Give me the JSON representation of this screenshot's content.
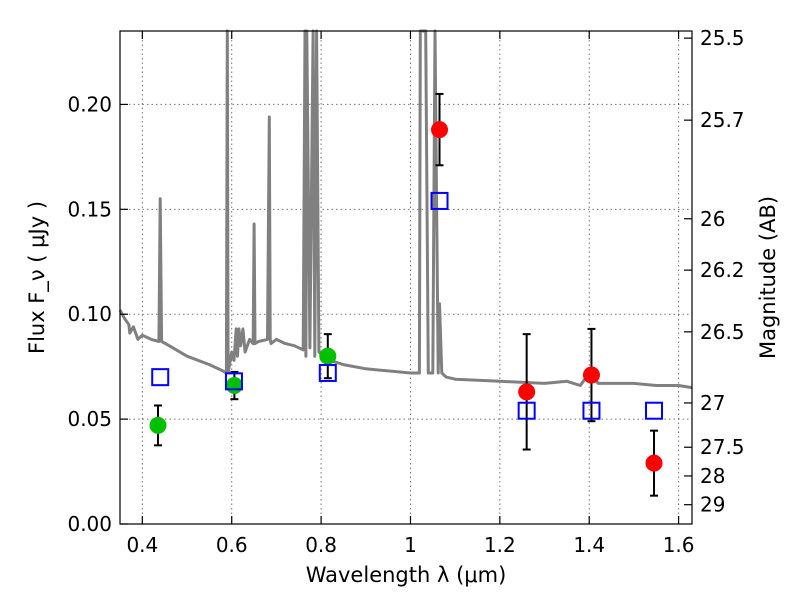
{
  "chart_data": {
    "type": "scatter",
    "title": "",
    "xlabel": "Wavelength  λ (μm)",
    "ylabel": "Flux  F_ν  ( μJy )",
    "y2label": "Magnitude (AB)",
    "xlim": [
      0.35,
      1.63
    ],
    "ylim": [
      0.0,
      0.235
    ],
    "grid": true,
    "x_ticks": [
      0.4,
      0.6,
      0.8,
      1.0,
      1.2,
      1.4,
      1.6
    ],
    "x_tick_labels": [
      "0.4",
      "0.6",
      "0.8",
      "1",
      "1.2",
      "1.4",
      "1.6"
    ],
    "y_ticks": [
      0.0,
      0.05,
      0.1,
      0.15,
      0.2
    ],
    "y_tick_labels": [
      "0.00",
      "0.05",
      "0.10",
      "0.15",
      "0.20"
    ],
    "y2_ticks": [
      {
        "flux": 0.2316,
        "label": "25.5"
      },
      {
        "flux": 0.1925,
        "label": "25.7"
      },
      {
        "flux": 0.1455,
        "label": "26"
      },
      {
        "flux": 0.121,
        "label": "26.2"
      },
      {
        "flux": 0.0916,
        "label": "26.5"
      },
      {
        "flux": 0.0577,
        "label": "27"
      },
      {
        "flux": 0.0366,
        "label": "27.5"
      },
      {
        "flux": 0.0229,
        "label": "28"
      },
      {
        "flux": 0.0092,
        "label": "29"
      }
    ],
    "series": [
      {
        "type": "line",
        "color": "#808080",
        "x": [
          0.35,
          0.36,
          0.37,
          0.372,
          0.38,
          0.39,
          0.4,
          0.42,
          0.437,
          0.44,
          0.443,
          0.46,
          0.5,
          0.55,
          0.58,
          0.588,
          0.59,
          0.592,
          0.6,
          0.605,
          0.61,
          0.613,
          0.616,
          0.62,
          0.625,
          0.63,
          0.64,
          0.648,
          0.65,
          0.652,
          0.66,
          0.68,
          0.684,
          0.686,
          0.688,
          0.7,
          0.72,
          0.74,
          0.76,
          0.764,
          0.766,
          0.768,
          0.775,
          0.782,
          0.786,
          0.79,
          0.795,
          0.8,
          0.82,
          0.85,
          0.9,
          0.95,
          1.0,
          1.02,
          1.022,
          1.03,
          1.034,
          1.04,
          1.05,
          1.055,
          1.062,
          1.065,
          1.07,
          1.08,
          1.1,
          1.2,
          1.3,
          1.35,
          1.38,
          1.4,
          1.42,
          1.45,
          1.5,
          1.55,
          1.6,
          1.63
        ],
        "y": [
          0.102,
          0.098,
          0.095,
          0.091,
          0.094,
          0.088,
          0.09,
          0.088,
          0.087,
          0.155,
          0.087,
          0.085,
          0.08,
          0.076,
          0.073,
          0.072,
          0.235,
          0.072,
          0.082,
          0.078,
          0.093,
          0.08,
          0.093,
          0.085,
          0.093,
          0.082,
          0.088,
          0.086,
          0.143,
          0.086,
          0.087,
          0.088,
          0.194,
          0.088,
          0.086,
          0.088,
          0.086,
          0.085,
          0.083,
          0.235,
          0.08,
          0.235,
          0.084,
          0.235,
          0.08,
          0.235,
          0.082,
          0.081,
          0.078,
          0.076,
          0.074,
          0.073,
          0.072,
          0.072,
          0.235,
          0.235,
          0.235,
          0.072,
          0.072,
          0.235,
          0.072,
          0.105,
          0.072,
          0.07,
          0.069,
          0.068,
          0.067,
          0.068,
          0.066,
          0.072,
          0.067,
          0.067,
          0.067,
          0.066,
          0.066,
          0.065
        ]
      },
      {
        "type": "scatter",
        "marker": "circle",
        "color": "#00c000",
        "points": [
          {
            "x": 0.435,
            "y": 0.047,
            "err": 0.0095
          },
          {
            "x": 0.606,
            "y": 0.066,
            "err": 0.0065
          },
          {
            "x": 0.815,
            "y": 0.08,
            "err": 0.0105
          }
        ]
      },
      {
        "type": "scatter",
        "marker": "circle",
        "color": "#ff0000",
        "points": [
          {
            "x": 1.065,
            "y": 0.188,
            "err": 0.017
          },
          {
            "x": 1.26,
            "y": 0.063,
            "err": 0.0275
          },
          {
            "x": 1.405,
            "y": 0.071,
            "err": 0.022
          },
          {
            "x": 1.545,
            "y": 0.029,
            "err": 0.0155
          }
        ]
      },
      {
        "type": "scatter",
        "marker": "open-square",
        "color": "#0000ff",
        "points": [
          {
            "x": 0.44,
            "y": 0.07
          },
          {
            "x": 0.605,
            "y": 0.068
          },
          {
            "x": 0.815,
            "y": 0.072
          },
          {
            "x": 1.065,
            "y": 0.154
          },
          {
            "x": 1.26,
            "y": 0.054
          },
          {
            "x": 1.405,
            "y": 0.054
          },
          {
            "x": 1.545,
            "y": 0.054
          }
        ]
      }
    ]
  }
}
